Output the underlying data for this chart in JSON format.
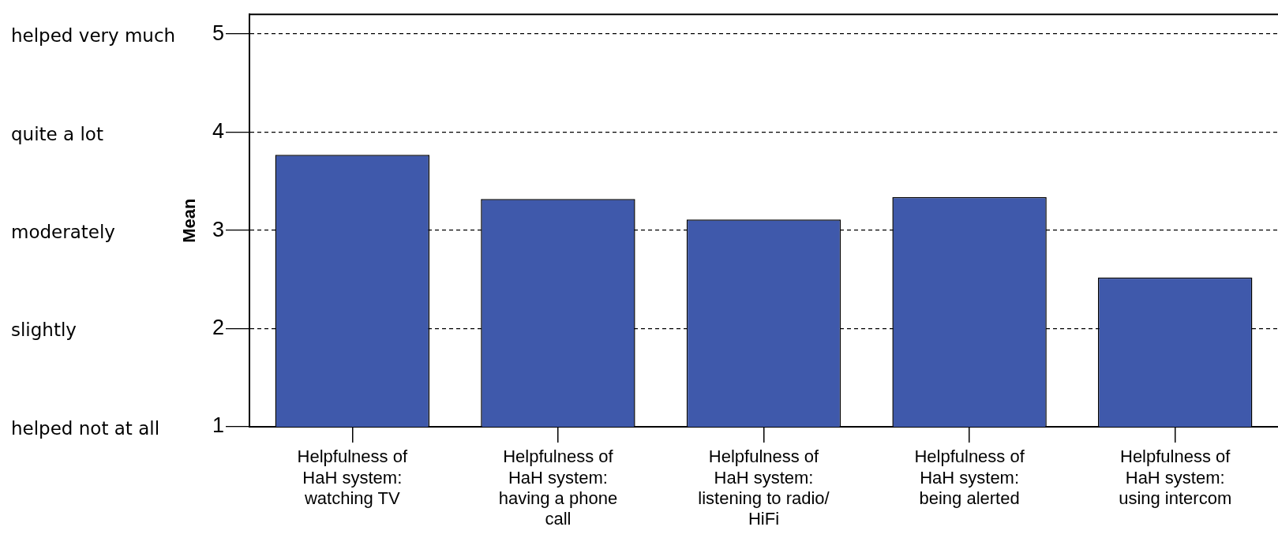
{
  "chart_data": {
    "type": "bar",
    "ylabel": "Mean",
    "categories": [
      "Helpfulness of HaH system: watching TV",
      "Helpfulness of HaH system: having a phone call",
      "Helpfulness of HaH system: listening to radio/ HiFi",
      "Helpfulness of HaH system: being alerted",
      "Helpfulness of HaH system: using intercom"
    ],
    "values": [
      3.77,
      3.32,
      3.11,
      3.34,
      2.52
    ],
    "color": "#3f59ab",
    "ylim": [
      1,
      5.2
    ],
    "yticks": [
      1,
      2,
      3,
      4,
      5
    ],
    "grid": "y",
    "legend": false,
    "annotations": [
      "helped very much",
      "quite a lot",
      "moderately",
      "slightly",
      "helped not at all"
    ]
  }
}
